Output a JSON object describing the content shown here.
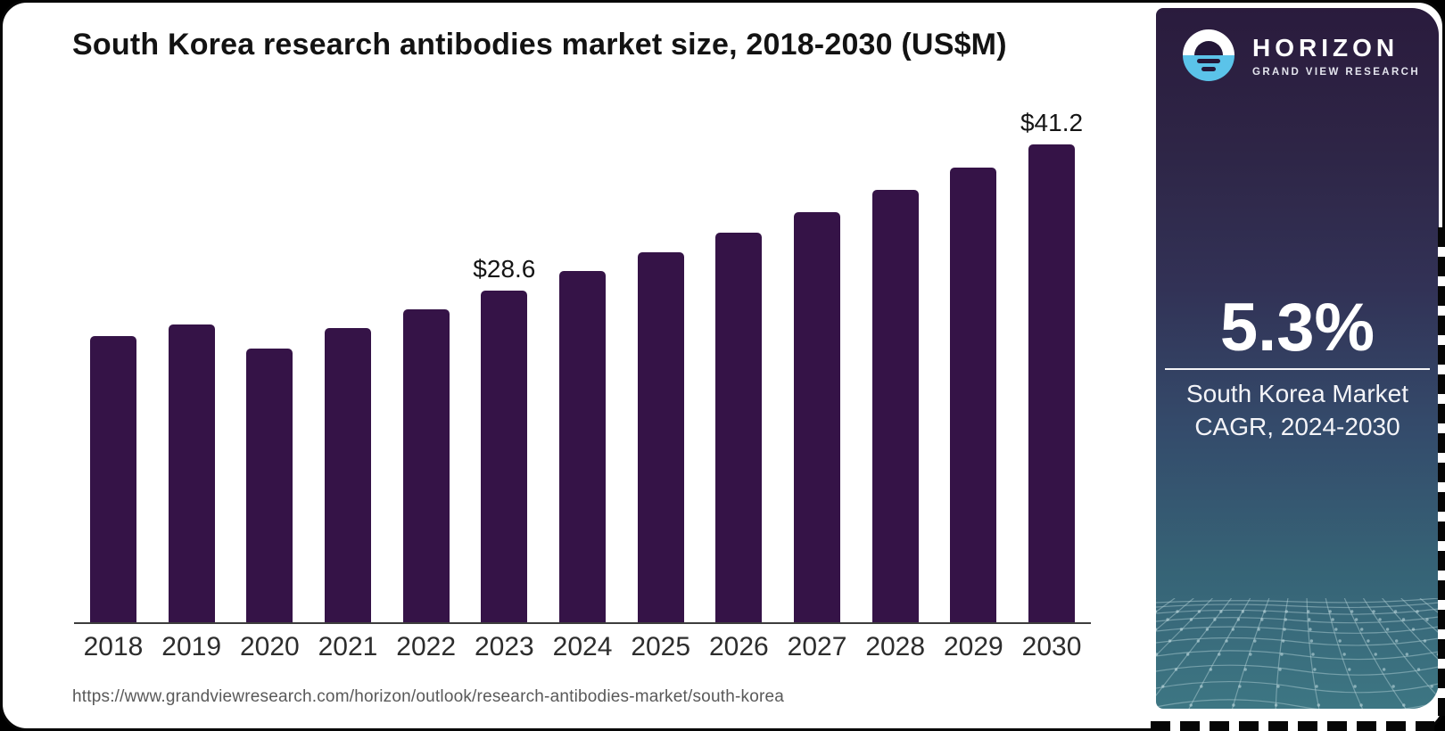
{
  "card": {
    "source_url": "https://www.grandviewresearch.com/horizon/outlook/research-antibodies-market/south-korea"
  },
  "chart_data": {
    "type": "bar",
    "title": "South Korea research antibodies market size, 2018-2030 (US$M)",
    "categories": [
      "2018",
      "2019",
      "2020",
      "2021",
      "2022",
      "2023",
      "2024",
      "2025",
      "2026",
      "2027",
      "2028",
      "2029",
      "2030"
    ],
    "values": [
      24.7,
      25.7,
      23.6,
      25.4,
      27.0,
      28.6,
      30.3,
      31.9,
      33.6,
      35.4,
      37.3,
      39.2,
      41.2
    ],
    "data_labels": {
      "2023": "$28.6",
      "2030": "$41.2"
    },
    "xlabel": "",
    "ylabel": "",
    "ylim": [
      0,
      43.2
    ],
    "grid": "off",
    "legend": "none",
    "bar_color": "#351347",
    "axis_color": "#3d3d3d"
  },
  "sidebar": {
    "brand": {
      "name": "HORIZON",
      "tagline": "GRAND VIEW RESEARCH",
      "logo": "horizon-sun-icon"
    },
    "stat": {
      "value": "5.3%",
      "caption": "South Korea Market CAGR, 2024-2030"
    },
    "colors": {
      "accent_blue": "#5bc3e9",
      "bg_top": "#2a1b3d",
      "bg_bottom": "#3d7683",
      "text": "#ffffff"
    }
  }
}
